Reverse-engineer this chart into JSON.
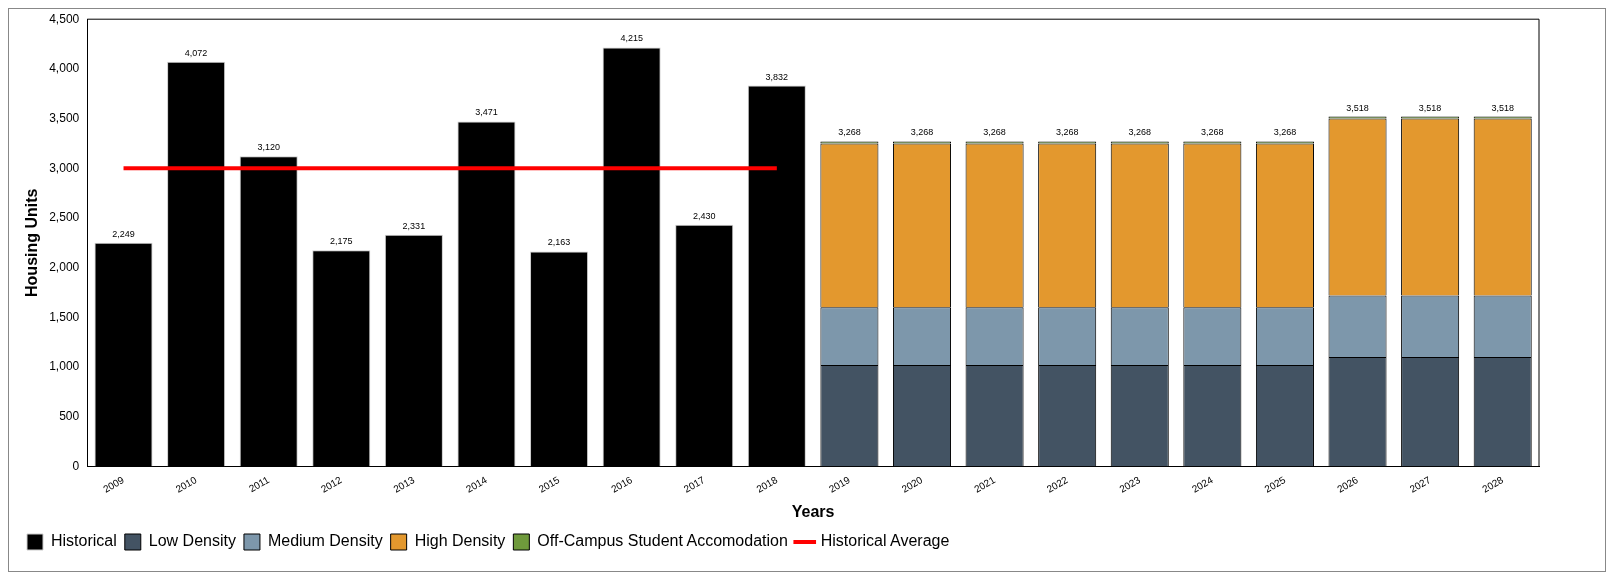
{
  "chart_data": {
    "type": "bar",
    "xlabel": "Years",
    "ylabel": "Housing Units",
    "categories": [
      "2009",
      "2010",
      "2011",
      "2012",
      "2013",
      "2014",
      "2015",
      "2016",
      "2017",
      "2018",
      "2019",
      "2020",
      "2021",
      "2022",
      "2023",
      "2024",
      "2025",
      "2026",
      "2027",
      "2028"
    ],
    "stacked": true,
    "series": [
      {
        "name": "Historical",
        "color": "#000000",
        "values": [
          2249,
          4072,
          3120,
          2175,
          2331,
          3471,
          2163,
          4215,
          2430,
          3832,
          null,
          null,
          null,
          null,
          null,
          null,
          null,
          null,
          null,
          null
        ],
        "value_labels": [
          "2,249",
          "4,072",
          "3,120",
          "2,175",
          "2,331",
          "3,471",
          "2,163",
          "4,215",
          "2,430",
          "3,832",
          null,
          null,
          null,
          null,
          null,
          null,
          null,
          null,
          null,
          null
        ]
      },
      {
        "name": "Low Density",
        "color": "#435363",
        "values": [
          null,
          null,
          null,
          null,
          null,
          null,
          null,
          null,
          null,
          null,
          1020,
          1020,
          1020,
          1020,
          1020,
          1020,
          1020,
          1100,
          1100,
          1100
        ]
      },
      {
        "name": "Medium Density",
        "color": "#7d97ab",
        "values": [
          null,
          null,
          null,
          null,
          null,
          null,
          null,
          null,
          null,
          null,
          580,
          580,
          580,
          580,
          580,
          580,
          580,
          620,
          620,
          620
        ]
      },
      {
        "name": "High Density",
        "color": "#e3982e",
        "values": [
          null,
          null,
          null,
          null,
          null,
          null,
          null,
          null,
          null,
          null,
          1650,
          1650,
          1650,
          1650,
          1650,
          1650,
          1650,
          1780,
          1780,
          1780
        ]
      },
      {
        "name": "Off-Campus Student Accomodation",
        "color": "#6f9a3c",
        "values": [
          null,
          null,
          null,
          null,
          null,
          null,
          null,
          null,
          null,
          null,
          20,
          20,
          20,
          20,
          20,
          20,
          20,
          20,
          20,
          20
        ]
      },
      {
        "name": "Historical Average",
        "type": "line",
        "color": "#ff0000",
        "values": [
          3000,
          3000,
          3000,
          3000,
          3000,
          3000,
          3000,
          3000,
          3000,
          3000,
          null,
          null,
          null,
          null,
          null,
          null,
          null,
          null,
          null,
          null
        ]
      }
    ],
    "totals": [
      null,
      null,
      null,
      null,
      null,
      null,
      null,
      null,
      null,
      null,
      "3,268",
      "3,268",
      "3,268",
      "3,268",
      "3,268",
      "3,268",
      "3,268",
      "3,518",
      "3,518",
      "3,518"
    ],
    "ylim": [
      0,
      4500
    ],
    "yticks": [
      0,
      500,
      {
        "value": 1000,
        "label": "1,000"
      },
      {
        "value": 1500,
        "label": "1,500"
      },
      {
        "value": 2000,
        "label": "2,000"
      },
      {
        "value": 2500,
        "label": "2,500"
      },
      {
        "value": 3000,
        "label": "3,000"
      },
      {
        "value": 3500,
        "label": "3,500"
      },
      {
        "value": 4000,
        "label": "4,000"
      },
      {
        "value": 4500,
        "label": "4,500"
      }
    ],
    "grid": false,
    "legend": "bottom"
  }
}
